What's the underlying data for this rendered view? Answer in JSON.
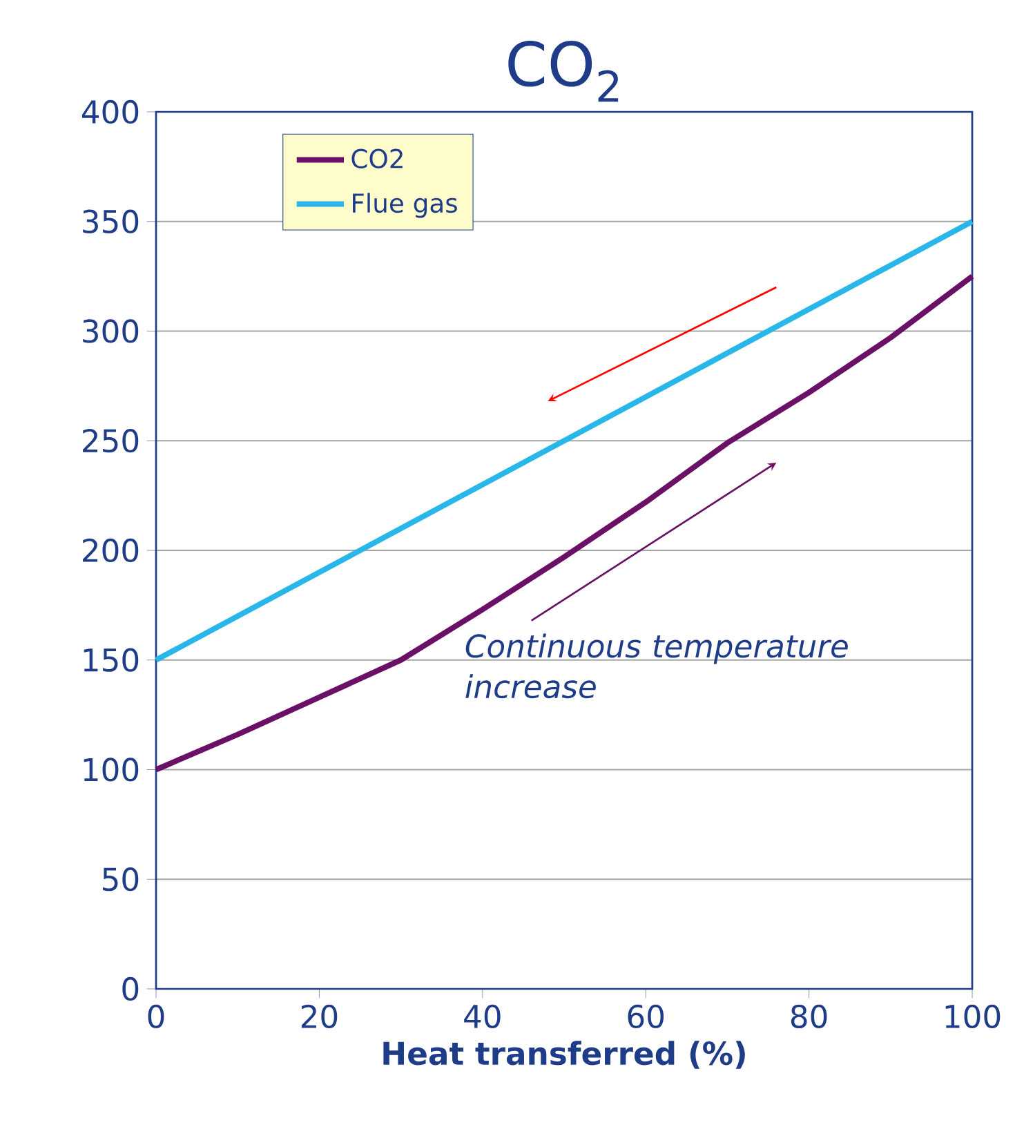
{
  "chart_data": {
    "type": "line",
    "title": "CO$_{2}$",
    "xlabel": "Heat transferred (%)",
    "x": [
      0,
      10,
      20,
      30,
      40,
      50,
      60,
      70,
      80,
      90,
      100
    ],
    "series": [
      {
        "name": "CO2",
        "color": "#6a1066",
        "values": [
          100,
          116,
          133,
          150,
          173,
          197,
          222,
          249,
          272,
          297,
          325
        ]
      },
      {
        "name": "Flue gas",
        "color": "#29b6e8",
        "values": [
          150,
          170,
          190,
          210,
          230,
          250,
          270,
          290,
          310,
          330,
          350
        ]
      }
    ],
    "xlim": [
      0,
      100
    ],
    "xticks": [
      0,
      20,
      40,
      60,
      80,
      100
    ],
    "ylim": [
      0,
      400
    ],
    "yticks": [
      0,
      50,
      100,
      150,
      200,
      250,
      300,
      350,
      400
    ],
    "grid": "y",
    "legend": "top left",
    "annotations": [
      {
        "text": "Continuous temperature increase"
      }
    ]
  }
}
